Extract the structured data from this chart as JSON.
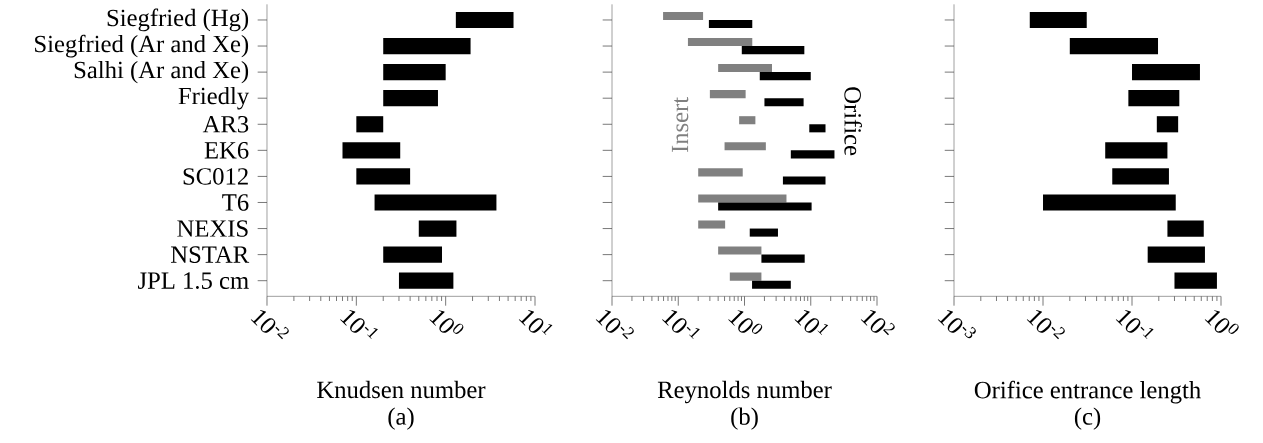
{
  "chart_data": [
    {
      "type": "bar",
      "orientation": "horizontal",
      "log": "x",
      "xlabel": "Knudsen number",
      "annotations": [
        "(a)"
      ],
      "categories": [
        "Siegfried (Hg)",
        "Siegfried (Ar and Xe)",
        "Salhi (Ar and Xe)",
        "Friedly",
        "AR3",
        "EK6",
        "SC012",
        "T6",
        "NEXIS",
        "NSTAR",
        "JPL 1.5 cm"
      ],
      "xlim": [
        0.01,
        10
      ],
      "xticks": [
        {
          "value": 0.01,
          "label": "10$^{-2}$"
        },
        {
          "value": 0.1,
          "label": "10$^{-1}$"
        },
        {
          "value": 1,
          "label": "10$^{0}$"
        },
        {
          "value": 10,
          "label": "10$^{1}$"
        }
      ],
      "series": [
        {
          "color": "#000000",
          "base": [
            1.3,
            0.2,
            0.2,
            0.2,
            0.1,
            0.07,
            0.1,
            0.16,
            0.5,
            0.2,
            0.3
          ],
          "values": [
            4.45,
            1.7,
            0.8,
            0.62,
            0.1,
            0.24,
            0.3,
            3.54,
            0.82,
            0.71,
            0.92
          ]
        }
      ]
    },
    {
      "type": "bar",
      "orientation": "horizontal",
      "log": "x",
      "xlabel": "Reynolds number",
      "annotations": [
        "(b)"
      ],
      "categories": [
        null,
        null,
        null,
        null,
        null,
        null,
        null,
        null,
        null,
        null,
        null
      ],
      "xlim": [
        0.01,
        100
      ],
      "xticks": [
        {
          "value": 0.01,
          "label": "10$^{-2}$"
        },
        {
          "value": 0.1,
          "label": "10$^{-1}$"
        },
        {
          "value": 1,
          "label": "10$^{0}$"
        },
        {
          "value": 10,
          "label": "10$^{1}$"
        },
        {
          "value": 100,
          "label": "10$^{2}$"
        }
      ],
      "series": [
        {
          "name": "Insert",
          "color": "#808080",
          "base": [
            0.059,
            0.14,
            0.4,
            0.3,
            0.83,
            0.5,
            0.2,
            0.2,
            0.2,
            0.4,
            0.6
          ],
          "values": [
            0.178,
            1.17,
            2.2,
            0.74,
            0.63,
            1.6,
            0.74,
            4.1,
            0.31,
            1.4,
            1.2
          ]
        },
        {
          "name": "Orifice",
          "color": "#000000",
          "base": [
            0.29,
            0.91,
            1.7,
            2.0,
            9.5,
            5.0,
            3.8,
            0.4,
            1.2,
            1.8,
            1.3
          ],
          "values": [
            1.02,
            7.09,
            8.3,
            5.8,
            7.2,
            17.8,
            12.9,
            9.9,
            2.0,
            6.3,
            3.7
          ]
        }
      ]
    },
    {
      "type": "bar",
      "orientation": "horizontal",
      "log": "x",
      "xlabel": "Orifice entrance length",
      "annotations": [
        "(c)"
      ],
      "categories": [
        null,
        null,
        null,
        null,
        null,
        null,
        null,
        null,
        null,
        null,
        null
      ],
      "xlim": [
        0.001,
        1
      ],
      "xticks": [
        {
          "value": 0.001,
          "label": "10$^{-3}$"
        },
        {
          "value": 0.01,
          "label": "10$^{-2}$"
        },
        {
          "value": 0.1,
          "label": "10$^{-1}$"
        },
        {
          "value": 1,
          "label": "10$^{0}$"
        }
      ],
      "series": [
        {
          "color": "#000000",
          "base": [
            0.0071,
            0.02,
            0.1,
            0.091,
            0.19,
            0.05,
            0.06,
            0.01,
            0.25,
            0.15,
            0.3
          ],
          "values": [
            0.0239,
            0.176,
            0.48,
            0.249,
            0.14,
            0.2,
            0.2,
            0.3,
            0.39,
            0.51,
            0.6
          ]
        }
      ]
    }
  ]
}
